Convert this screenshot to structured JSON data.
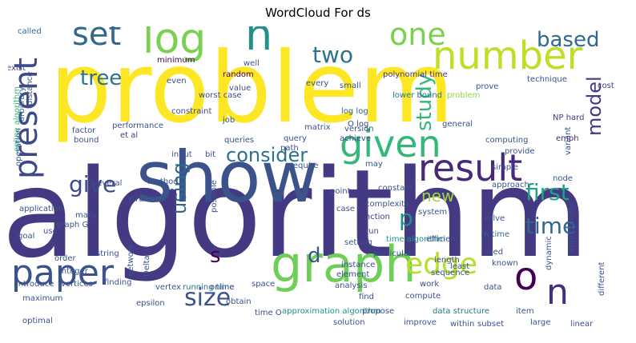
{
  "title": "WordCloud For ds",
  "chart_data": {
    "type": "wordcloud",
    "title": "WordCloud For ds",
    "words": [
      {
        "text": "algorithm",
        "weight": 1.0,
        "color": "#443983"
      },
      {
        "text": "problem",
        "weight": 0.96,
        "color": "#fde725"
      },
      {
        "text": "show",
        "weight": 0.62,
        "color": "#3b528b"
      },
      {
        "text": "graph",
        "weight": 0.48,
        "color": "#6ece58"
      },
      {
        "text": "log",
        "weight": 0.46,
        "color": "#7ad151"
      },
      {
        "text": "n",
        "weight": 0.45,
        "color": "#21918c"
      },
      {
        "text": "number",
        "weight": 0.42,
        "color": "#bddf26"
      },
      {
        "text": "result",
        "weight": 0.38,
        "color": "#482878"
      },
      {
        "text": "given",
        "weight": 0.37,
        "color": "#35b779"
      },
      {
        "text": "paper",
        "weight": 0.35,
        "color": "#3b528b"
      },
      {
        "text": "o",
        "weight": 0.34,
        "color": "#440154"
      },
      {
        "text": "n",
        "weight": 0.33,
        "color": "#472d7b"
      },
      {
        "text": "edge",
        "weight": 0.3,
        "color": "#b5de2b"
      },
      {
        "text": "present",
        "weight": 0.3,
        "color": "#3e4989"
      },
      {
        "text": "one",
        "weight": 0.29,
        "color": "#7ad151"
      },
      {
        "text": "set",
        "weight": 0.28,
        "color": "#31688e"
      },
      {
        "text": "two",
        "weight": 0.22,
        "color": "#2c728e"
      },
      {
        "text": "first",
        "weight": 0.22,
        "color": "#20a486"
      },
      {
        "text": "time",
        "weight": 0.21,
        "color": "#31688e"
      },
      {
        "text": "size",
        "weight": 0.2,
        "color": "#3b528b"
      },
      {
        "text": "based",
        "weight": 0.17,
        "color": "#31688e"
      },
      {
        "text": "study",
        "weight": 0.17,
        "color": "#35b779"
      },
      {
        "text": "model",
        "weight": 0.17,
        "color": "#443983"
      },
      {
        "text": "give",
        "weight": 0.17,
        "color": "#3e4989"
      },
      {
        "text": "using",
        "weight": 0.17,
        "color": "#31688e"
      },
      {
        "text": "tree",
        "weight": 0.16,
        "color": "#2c728e"
      },
      {
        "text": "p",
        "weight": 0.16,
        "color": "#21918c"
      },
      {
        "text": "s",
        "weight": 0.16,
        "color": "#440154"
      },
      {
        "text": "d",
        "weight": 0.15,
        "color": "#3b528b"
      },
      {
        "text": "consider",
        "weight": 0.14,
        "color": "#2c728e"
      },
      {
        "text": "new",
        "weight": 0.12,
        "color": "#a0da39"
      },
      {
        "text": "problem",
        "weight": 0.04,
        "color": "#8fd744"
      },
      {
        "text": "polynomial time",
        "weight": 0.03,
        "color": "#443983"
      },
      {
        "text": "lower bound",
        "weight": 0.03,
        "color": "#2c728e"
      },
      {
        "text": "log log",
        "weight": 0.03,
        "color": "#31688e"
      },
      {
        "text": "O log",
        "weight": 0.03,
        "color": "#3e4989"
      },
      {
        "text": "worst case",
        "weight": 0.03,
        "color": "#3e4989"
      },
      {
        "text": "et al",
        "weight": 0.03,
        "color": "#443983"
      },
      {
        "text": "running time",
        "weight": 0.03,
        "color": "#2c728e"
      },
      {
        "text": "time algorithm",
        "weight": 0.03,
        "color": "#21918c"
      },
      {
        "text": "approximation algorithm",
        "weight": 0.03,
        "color": "#21918c"
      },
      {
        "text": "data structure",
        "weight": 0.03,
        "color": "#2c728e"
      },
      {
        "text": "NP hard",
        "weight": 0.03,
        "color": "#443983"
      },
      {
        "text": "online algorithm",
        "weight": 0.03,
        "color": "#35b779"
      },
      {
        "text": "n time",
        "weight": 0.03,
        "color": "#31688e"
      },
      {
        "text": "time O",
        "weight": 0.03,
        "color": "#3e4989"
      },
      {
        "text": "function",
        "weight": 0.03,
        "color": "#443983"
      },
      {
        "text": "called",
        "weight": 0.02,
        "color": "#31688e"
      },
      {
        "text": "minimum",
        "weight": 0.02,
        "color": "#440154"
      },
      {
        "text": "well",
        "weight": 0.02,
        "color": "#3b528b"
      },
      {
        "text": "every",
        "weight": 0.02,
        "color": "#3b528b"
      },
      {
        "text": "technique",
        "weight": 0.02,
        "color": "#3b528b"
      },
      {
        "text": "exist",
        "weight": 0.02,
        "color": "#3e4989"
      },
      {
        "text": "arbitrary",
        "weight": 0.02,
        "color": "#31688e"
      },
      {
        "text": "random",
        "weight": 0.02,
        "color": "#440154"
      },
      {
        "text": "small",
        "weight": 0.02,
        "color": "#3b528b"
      },
      {
        "text": "prove",
        "weight": 0.02,
        "color": "#3b528b"
      },
      {
        "text": "cost",
        "weight": 0.02,
        "color": "#3e4989"
      },
      {
        "text": "emph",
        "weight": 0.02,
        "color": "#472d7b"
      },
      {
        "text": "even",
        "weight": 0.02,
        "color": "#3b528b"
      },
      {
        "text": "value",
        "weight": 0.02,
        "color": "#3b528b"
      },
      {
        "text": "factor",
        "weight": 0.02,
        "color": "#3b528b"
      },
      {
        "text": "bound",
        "weight": 0.02,
        "color": "#3b528b"
      },
      {
        "text": "constraint",
        "weight": 0.02,
        "color": "#3e4989"
      },
      {
        "text": "job",
        "weight": 0.02,
        "color": "#3b528b"
      },
      {
        "text": "performance",
        "weight": 0.02,
        "color": "#3b528b"
      },
      {
        "text": "queries",
        "weight": 0.02,
        "color": "#3b528b"
      },
      {
        "text": "query",
        "weight": 0.02,
        "color": "#3b528b"
      },
      {
        "text": "path",
        "weight": 0.02,
        "color": "#3b528b"
      },
      {
        "text": "matrix",
        "weight": 0.02,
        "color": "#3b528b"
      },
      {
        "text": "version",
        "weight": 0.02,
        "color": "#3b528b"
      },
      {
        "text": "achieve",
        "weight": 0.02,
        "color": "#3b528b"
      },
      {
        "text": "general",
        "weight": 0.02,
        "color": "#3b528b"
      },
      {
        "text": "computing",
        "weight": 0.02,
        "color": "#3b528b"
      },
      {
        "text": "provide",
        "weight": 0.02,
        "color": "#3b528b"
      },
      {
        "text": "variant",
        "weight": 0.02,
        "color": "#3b528b"
      },
      {
        "text": "distance",
        "weight": 0.02,
        "color": "#3b528b"
      },
      {
        "text": "operation",
        "weight": 0.02,
        "color": "#3b528b"
      },
      {
        "text": "input",
        "weight": 0.02,
        "color": "#3b528b"
      },
      {
        "text": "bit",
        "weight": 0.02,
        "color": "#3b528b"
      },
      {
        "text": "require",
        "weight": 0.02,
        "color": "#3b528b"
      },
      {
        "text": "simple",
        "weight": 0.02,
        "color": "#3b528b"
      },
      {
        "text": "several",
        "weight": 0.02,
        "color": "#3b528b"
      },
      {
        "text": "method",
        "weight": 0.02,
        "color": "#3b528b"
      },
      {
        "text": "structure",
        "weight": 0.02,
        "color": "#3b528b"
      },
      {
        "text": "approach",
        "weight": 0.02,
        "color": "#3b528b"
      },
      {
        "text": "node",
        "weight": 0.02,
        "color": "#3b528b"
      },
      {
        "text": "constant",
        "weight": 0.02,
        "color": "#3b528b"
      },
      {
        "text": "may",
        "weight": 0.02,
        "color": "#3b528b"
      },
      {
        "text": "point",
        "weight": 0.02,
        "color": "#3b528b"
      },
      {
        "text": "many",
        "weight": 0.02,
        "color": "#3b528b"
      },
      {
        "text": "complexity",
        "weight": 0.02,
        "color": "#3b528b"
      },
      {
        "text": "application",
        "weight": 0.02,
        "color": "#3b528b"
      },
      {
        "text": "graph G",
        "weight": 0.02,
        "color": "#3b528b"
      },
      {
        "text": "system",
        "weight": 0.02,
        "color": "#3b528b"
      },
      {
        "text": "case",
        "weight": 0.02,
        "color": "#3b528b"
      },
      {
        "text": "run",
        "weight": 0.02,
        "color": "#3b528b"
      },
      {
        "text": "solve",
        "weight": 0.02,
        "color": "#3b528b"
      },
      {
        "text": "possible",
        "weight": 0.02,
        "color": "#3b528b"
      },
      {
        "text": "goal",
        "weight": 0.02,
        "color": "#3b528b"
      },
      {
        "text": "use",
        "weight": 0.02,
        "color": "#3b528b"
      },
      {
        "text": "string",
        "weight": 0.02,
        "color": "#3b528b"
      },
      {
        "text": "efficient",
        "weight": 0.02,
        "color": "#3b528b"
      },
      {
        "text": "used",
        "weight": 0.02,
        "color": "#3b528b"
      },
      {
        "text": "known",
        "weight": 0.02,
        "color": "#3b528b"
      },
      {
        "text": "approximate",
        "weight": 0.02,
        "color": "#3b528b"
      },
      {
        "text": "order",
        "weight": 0.02,
        "color": "#3b528b"
      },
      {
        "text": "integer",
        "weight": 0.02,
        "color": "#3b528b"
      },
      {
        "text": "particular",
        "weight": 0.02,
        "color": "#3b528b"
      },
      {
        "text": "length",
        "weight": 0.02,
        "color": "#3b528b"
      },
      {
        "text": "least",
        "weight": 0.02,
        "color": "#3b528b"
      },
      {
        "text": "dynamic",
        "weight": 0.02,
        "color": "#3b528b"
      },
      {
        "text": "setting",
        "weight": 0.02,
        "color": "#3b528b"
      },
      {
        "text": "network",
        "weight": 0.02,
        "color": "#3b528b"
      },
      {
        "text": "Delta",
        "weight": 0.02,
        "color": "#3b528b"
      },
      {
        "text": "instance",
        "weight": 0.02,
        "color": "#3b528b"
      },
      {
        "text": "sequence",
        "weight": 0.02,
        "color": "#3b528b"
      },
      {
        "text": "element",
        "weight": 0.02,
        "color": "#3b528b"
      },
      {
        "text": "work",
        "weight": 0.02,
        "color": "#3b528b"
      },
      {
        "text": "data",
        "weight": 0.02,
        "color": "#3b528b"
      },
      {
        "text": "introduce",
        "weight": 0.02,
        "color": "#3b528b"
      },
      {
        "text": "vertices",
        "weight": 0.02,
        "color": "#3b528b"
      },
      {
        "text": "finding",
        "weight": 0.02,
        "color": "#3b528b"
      },
      {
        "text": "vertex",
        "weight": 0.02,
        "color": "#3b528b"
      },
      {
        "text": "online",
        "weight": 0.02,
        "color": "#3b528b"
      },
      {
        "text": "space",
        "weight": 0.02,
        "color": "#3b528b"
      },
      {
        "text": "analysis",
        "weight": 0.02,
        "color": "#3b528b"
      },
      {
        "text": "find",
        "weight": 0.02,
        "color": "#3b528b"
      },
      {
        "text": "compute",
        "weight": 0.02,
        "color": "#3b528b"
      },
      {
        "text": "item",
        "weight": 0.02,
        "color": "#3b528b"
      },
      {
        "text": "different",
        "weight": 0.02,
        "color": "#3b528b"
      },
      {
        "text": "maximum",
        "weight": 0.02,
        "color": "#3b528b"
      },
      {
        "text": "epsilon",
        "weight": 0.02,
        "color": "#3b528b"
      },
      {
        "text": "obtain",
        "weight": 0.02,
        "color": "#3b528b"
      },
      {
        "text": "propose",
        "weight": 0.02,
        "color": "#3b528b"
      },
      {
        "text": "large",
        "weight": 0.02,
        "color": "#3b528b"
      },
      {
        "text": "optimal",
        "weight": 0.02,
        "color": "#3b528b"
      },
      {
        "text": "solution",
        "weight": 0.02,
        "color": "#3b528b"
      },
      {
        "text": "improve",
        "weight": 0.02,
        "color": "#3b528b"
      },
      {
        "text": "within",
        "weight": 0.02,
        "color": "#3b528b"
      },
      {
        "text": "subset",
        "weight": 0.02,
        "color": "#3b528b"
      },
      {
        "text": "linear",
        "weight": 0.02,
        "color": "#3b528b"
      }
    ]
  }
}
